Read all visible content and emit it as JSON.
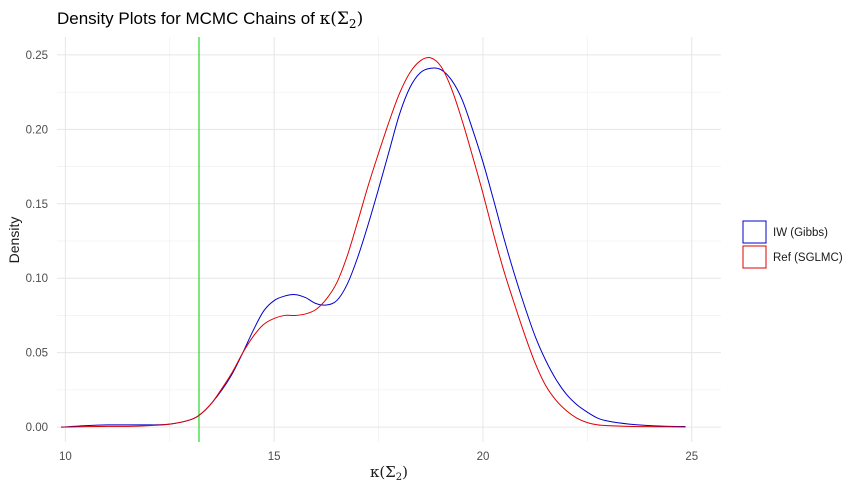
{
  "chart_data": {
    "type": "line",
    "title": {
      "prefix": "Density Plots for MCMC Chains of ",
      "symbol": "κ(Σ",
      "subscript": "2",
      "close": ")"
    },
    "xlabel": {
      "symbol": "κ(Σ",
      "subscript": "2",
      "close": ")"
    },
    "ylabel": "Density",
    "xlim": [
      9.8,
      25.7
    ],
    "ylim": [
      -0.01,
      0.262
    ],
    "x_ticks": [
      10,
      15,
      20,
      25
    ],
    "x_tick_labels": [
      "10",
      "15",
      "20",
      "25"
    ],
    "y_ticks": [
      0.0,
      0.05,
      0.1,
      0.15,
      0.2,
      0.25
    ],
    "y_tick_labels": [
      "0.00",
      "0.05",
      "0.10",
      "0.15",
      "0.20",
      "0.25"
    ],
    "grid": true,
    "legend_position": "right",
    "vline": {
      "x": 13.2,
      "color": "#00cc00"
    },
    "series": [
      {
        "name": "IW (Gibbs)",
        "color": "#0000cc",
        "x": [
          9.9,
          10.5,
          11.0,
          11.5,
          12.0,
          12.5,
          13.0,
          13.25,
          13.5,
          13.75,
          14.0,
          14.25,
          14.5,
          14.75,
          15.0,
          15.25,
          15.5,
          15.75,
          16.0,
          16.25,
          16.5,
          16.75,
          17.0,
          17.25,
          17.5,
          17.75,
          18.0,
          18.25,
          18.5,
          18.75,
          19.0,
          19.25,
          19.5,
          19.75,
          20.0,
          20.25,
          20.5,
          20.75,
          21.0,
          21.25,
          21.5,
          21.75,
          22.0,
          22.25,
          22.5,
          22.75,
          23.0,
          23.5,
          24.0,
          24.5,
          24.85
        ],
        "y": [
          0.0,
          0.001,
          0.0015,
          0.0015,
          0.0015,
          0.002,
          0.005,
          0.009,
          0.016,
          0.025,
          0.036,
          0.05,
          0.065,
          0.078,
          0.085,
          0.088,
          0.089,
          0.087,
          0.083,
          0.082,
          0.085,
          0.096,
          0.114,
          0.136,
          0.16,
          0.185,
          0.21,
          0.228,
          0.238,
          0.241,
          0.24,
          0.233,
          0.22,
          0.2,
          0.178,
          0.153,
          0.127,
          0.103,
          0.081,
          0.061,
          0.045,
          0.032,
          0.022,
          0.015,
          0.01,
          0.006,
          0.004,
          0.002,
          0.001,
          0.0005,
          0.0004
        ]
      },
      {
        "name": "Ref (SGLMC)",
        "color": "#e00000",
        "x": [
          9.9,
          10.5,
          11.0,
          11.5,
          12.0,
          12.5,
          13.0,
          13.25,
          13.5,
          13.75,
          14.0,
          14.25,
          14.5,
          14.75,
          15.0,
          15.25,
          15.5,
          15.75,
          16.0,
          16.25,
          16.5,
          16.75,
          17.0,
          17.25,
          17.5,
          17.75,
          18.0,
          18.25,
          18.5,
          18.75,
          19.0,
          19.25,
          19.5,
          19.75,
          20.0,
          20.25,
          20.5,
          20.75,
          21.0,
          21.25,
          21.5,
          21.75,
          22.0,
          22.25,
          22.5,
          22.75,
          23.0,
          23.5,
          24.0,
          24.5,
          24.85
        ],
        "y": [
          0.0,
          0.0003,
          0.0005,
          0.0005,
          0.001,
          0.002,
          0.005,
          0.009,
          0.016,
          0.026,
          0.037,
          0.05,
          0.061,
          0.069,
          0.073,
          0.075,
          0.075,
          0.076,
          0.079,
          0.086,
          0.097,
          0.115,
          0.138,
          0.162,
          0.184,
          0.205,
          0.224,
          0.238,
          0.246,
          0.248,
          0.242,
          0.227,
          0.206,
          0.182,
          0.157,
          0.13,
          0.105,
          0.083,
          0.062,
          0.043,
          0.028,
          0.018,
          0.011,
          0.006,
          0.003,
          0.0015,
          0.001,
          0.0005,
          0.0003,
          0.0002,
          0.0001
        ]
      }
    ]
  }
}
